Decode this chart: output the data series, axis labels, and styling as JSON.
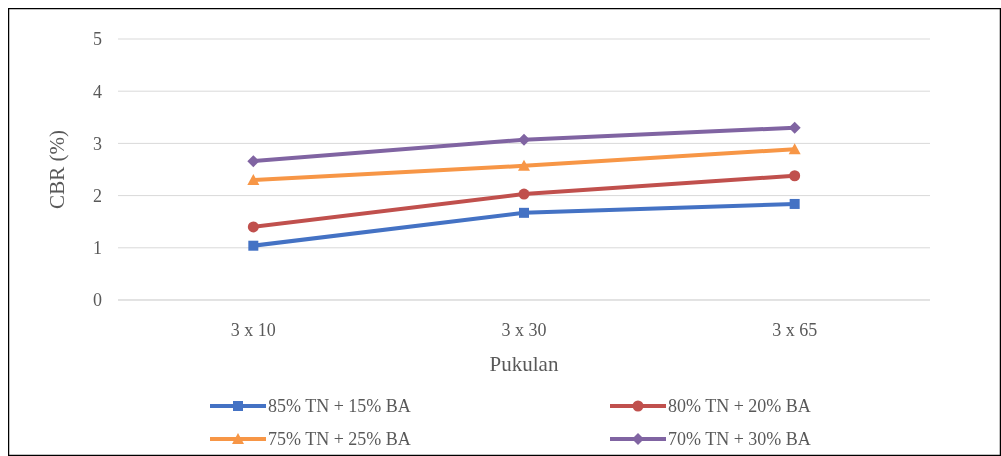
{
  "chart_data": {
    "type": "line",
    "xlabel": "Pukulan",
    "ylabel": "CBR (%)",
    "categories": [
      "3 x 10",
      "3 x 30",
      "3 x 65"
    ],
    "ylim": [
      0,
      5
    ],
    "yticks": [
      0,
      1,
      2,
      3,
      4,
      5
    ],
    "grid": "y",
    "legend": "bottom",
    "series": [
      {
        "name": "85% TN + 15% BA",
        "color": "#4472c4",
        "marker": "square",
        "values": [
          1.04,
          1.67,
          1.84
        ]
      },
      {
        "name": "80% TN + 20% BA",
        "color": "#c0504d",
        "marker": "circle",
        "values": [
          1.4,
          2.03,
          2.38
        ]
      },
      {
        "name": "75% TN + 25% BA",
        "color": "#f79646",
        "marker": "triangle",
        "values": [
          2.3,
          2.57,
          2.89
        ]
      },
      {
        "name": "70% TN + 30% BA",
        "color": "#8064a2",
        "marker": "diamond",
        "values": [
          2.66,
          3.07,
          3.3
        ]
      }
    ]
  }
}
